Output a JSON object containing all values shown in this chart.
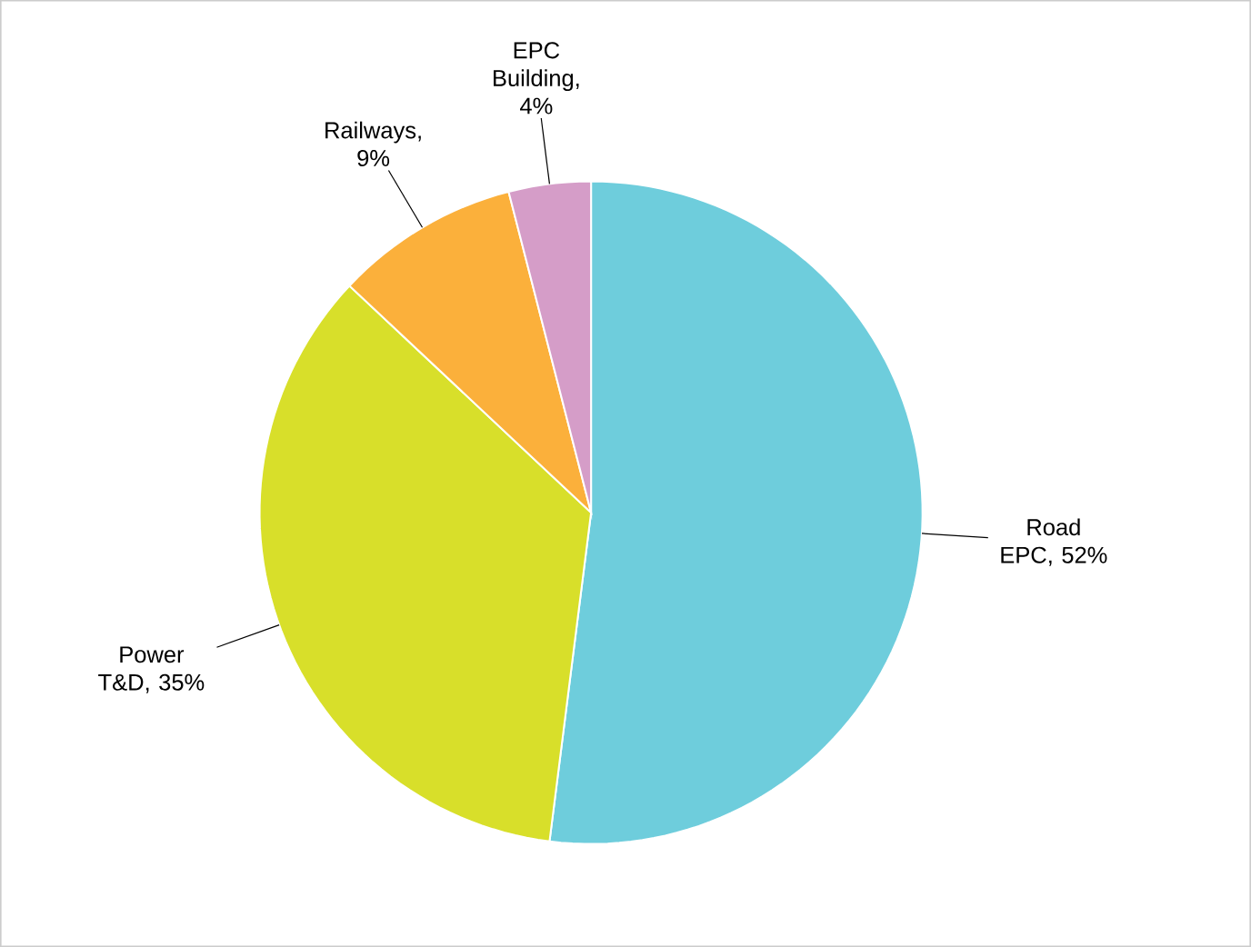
{
  "chart_data": {
    "type": "pie",
    "categories": [
      null,
      null,
      null,
      null
    ],
    "values": [
      52,
      35,
      9,
      4
    ],
    "value_labels": [
      "Road EPC, 52%",
      "Power T&D, 35%",
      "Railways, 9%",
      "EPC Building, 4%"
    ],
    "colors": [
      "#6ecddc",
      "#d8df2a",
      "#fbb03b",
      "#d59dc8"
    ]
  }
}
